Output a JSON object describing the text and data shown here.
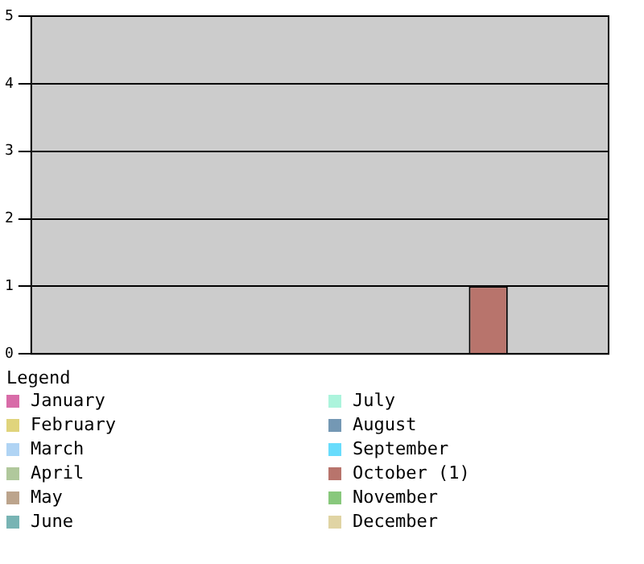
{
  "chart_data": {
    "type": "bar",
    "categories": [
      null,
      null,
      null,
      null,
      null,
      null,
      null,
      null,
      null,
      null,
      null,
      null
    ],
    "series": [
      {
        "name": "January",
        "color": "#d86ca8",
        "values": [
          0,
          null,
          null,
          null,
          null,
          null,
          null,
          null,
          null,
          null,
          null,
          null
        ]
      },
      {
        "name": "February",
        "color": "#e0d47c",
        "values": [
          null,
          0,
          null,
          null,
          null,
          null,
          null,
          null,
          null,
          null,
          null,
          null
        ]
      },
      {
        "name": "March",
        "color": "#b0d4f4",
        "values": [
          null,
          null,
          0,
          null,
          null,
          null,
          null,
          null,
          null,
          null,
          null,
          null
        ]
      },
      {
        "name": "April",
        "color": "#b0c89c",
        "values": [
          null,
          null,
          null,
          0,
          null,
          null,
          null,
          null,
          null,
          null,
          null,
          null
        ]
      },
      {
        "name": "May",
        "color": "#bca48c",
        "values": [
          null,
          null,
          null,
          null,
          0,
          null,
          null,
          null,
          null,
          null,
          null,
          null
        ]
      },
      {
        "name": "June",
        "color": "#78b4b4",
        "values": [
          null,
          null,
          null,
          null,
          null,
          0,
          null,
          null,
          null,
          null,
          null,
          null
        ]
      },
      {
        "name": "July",
        "color": "#acf4dc",
        "values": [
          null,
          null,
          null,
          null,
          null,
          null,
          0,
          null,
          null,
          null,
          null,
          null
        ]
      },
      {
        "name": "August",
        "color": "#7498b4",
        "values": [
          null,
          null,
          null,
          null,
          null,
          null,
          null,
          0,
          null,
          null,
          null,
          null
        ]
      },
      {
        "name": "September",
        "color": "#68dcfc",
        "values": [
          null,
          null,
          null,
          null,
          null,
          null,
          null,
          null,
          0,
          null,
          null,
          null
        ]
      },
      {
        "name": "October (1)",
        "color": "#b8746c",
        "values": [
          null,
          null,
          null,
          null,
          null,
          null,
          null,
          null,
          null,
          1,
          null,
          null
        ]
      },
      {
        "name": "November",
        "color": "#88c87c",
        "values": [
          null,
          null,
          null,
          null,
          null,
          null,
          null,
          null,
          null,
          null,
          0,
          null
        ]
      },
      {
        "name": "December",
        "color": "#e0d4a4",
        "values": [
          null,
          null,
          null,
          null,
          null,
          null,
          null,
          null,
          null,
          null,
          null,
          0
        ]
      }
    ],
    "ylim": [
      0,
      5
    ],
    "yticks": [
      0,
      1,
      2,
      3,
      4,
      5
    ],
    "grid": "y",
    "legend": "bottom",
    "legend_title": "Legend"
  }
}
